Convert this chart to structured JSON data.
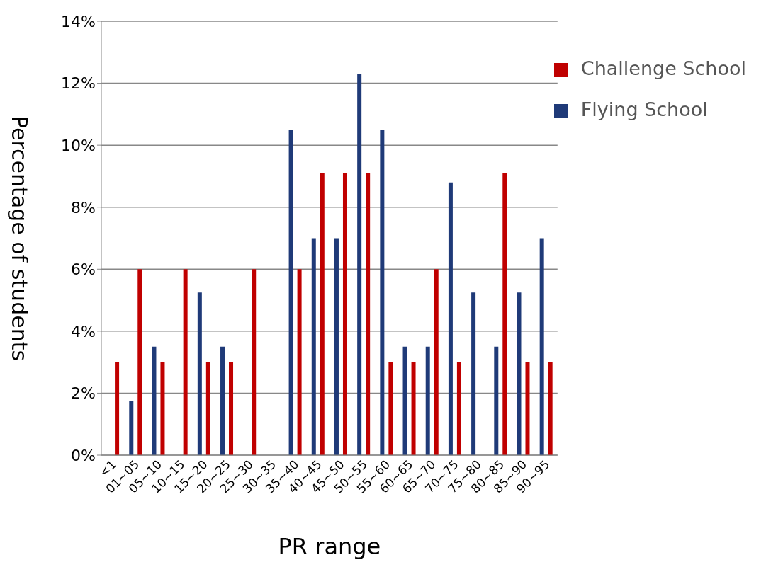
{
  "chart_data": {
    "type": "bar",
    "xlabel": "PR range",
    "ylabel": "Percentage of students",
    "categories": [
      "<1",
      "01~05",
      "05~10",
      "10~15",
      "15~20",
      "20~25",
      "25~30",
      "30~35",
      "35~40",
      "40~45",
      "45~50",
      "50~55",
      "55~60",
      "60~65",
      "65~70",
      "70~75",
      "75~80",
      "80~85",
      "85~90",
      "90~95"
    ],
    "series": [
      {
        "name": "Flying School",
        "color": "#1f3a78",
        "values": [
          0,
          1.75,
          3.5,
          0,
          5.25,
          3.5,
          0,
          0,
          10.5,
          7,
          7,
          12.3,
          10.5,
          3.5,
          3.5,
          8.8,
          5.25,
          3.5,
          5.25,
          7
        ]
      },
      {
        "name": "Challenge School",
        "color": "#c00000",
        "values": [
          3,
          6,
          3,
          6,
          3,
          3,
          6,
          0,
          6,
          9.1,
          9.1,
          9.1,
          3,
          3,
          6,
          3,
          0,
          9.1,
          3,
          3
        ]
      }
    ],
    "ylim": [
      0,
      14
    ],
    "yticks": [
      {
        "value": 0,
        "label": "0%"
      },
      {
        "value": 2,
        "label": "2%"
      },
      {
        "value": 4,
        "label": "4%"
      },
      {
        "value": 6,
        "label": "6%"
      },
      {
        "value": 8,
        "label": "8%"
      },
      {
        "value": 10,
        "label": "10%"
      },
      {
        "value": 12,
        "label": "12%"
      },
      {
        "value": 14,
        "label": "14%"
      }
    ],
    "grid": "y",
    "legend": "top right"
  }
}
